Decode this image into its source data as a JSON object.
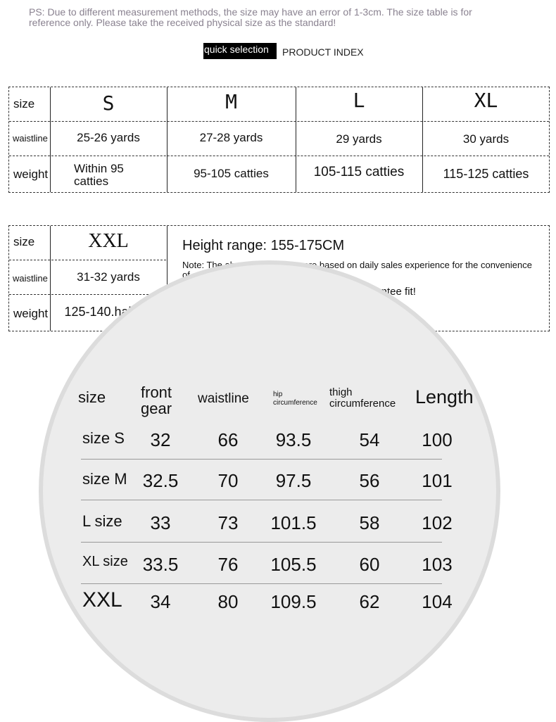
{
  "notice": "PS: Due to different measurement methods, the size may have an error of 1-3cm. The size table is for reference only. Please take the received physical size as the standard!",
  "quick_selection": "quick selection",
  "product_index": "PRODUCT INDEX",
  "table1": {
    "row_labels": [
      "size",
      "waistline",
      "weight"
    ],
    "sizes": [
      "S",
      "M",
      "L",
      "XL"
    ],
    "waistline": [
      "25-26 yards",
      "27-28 yards",
      "29 yards",
      "30 yards"
    ],
    "weight": [
      "Within 95 catties",
      "95-105 catties",
      "105-115 catties",
      "115-125 catties"
    ]
  },
  "table2": {
    "row_labels": [
      "size",
      "waistline",
      "weight"
    ],
    "size": "XXL",
    "waistline": "31-32 yards",
    "weight": "125-140.half-kg",
    "height_range": "Height range: 155-175CM",
    "note": "Note: The above suggestions are based on daily sales experience for the convenience of everyone",
    "fit": "Code selection does not necessarily guarantee fit!"
  },
  "measure": {
    "headers": [
      "size",
      "front gear",
      "waistline",
      "hip circumference",
      "thigh circumference",
      "Length"
    ],
    "rows": [
      {
        "size": "size S",
        "values": [
          "32",
          "66",
          "93.5",
          "54",
          "100"
        ]
      },
      {
        "size": "size M",
        "values": [
          "32.5",
          "70",
          "97.5",
          "56",
          "101"
        ]
      },
      {
        "size": "L size",
        "values": [
          "33",
          "73",
          "101.5",
          "58",
          "102"
        ]
      },
      {
        "size": "XL size",
        "values": [
          "33.5",
          "76",
          "105.5",
          "60",
          "103"
        ]
      },
      {
        "size": "XXL",
        "values": [
          "34",
          "80",
          "109.5",
          "62",
          "104"
        ]
      }
    ]
  }
}
